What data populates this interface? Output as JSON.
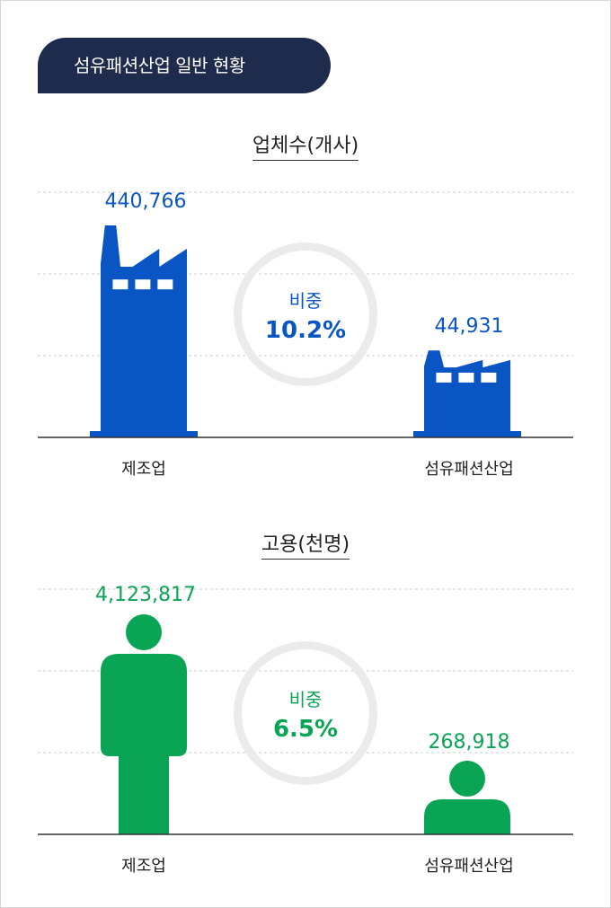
{
  "header": {
    "title": "섬유패션산업 일반 현황"
  },
  "chart_data": [
    {
      "type": "bar",
      "title": "업체수(개사)",
      "categories": [
        "제조업",
        "섬유패션산업"
      ],
      "values": [
        440766,
        44931
      ],
      "value_labels": [
        "440,766",
        "44,931"
      ],
      "ratio_label": "비중",
      "ratio_value": "10.2%",
      "ylim": [
        0,
        600000
      ],
      "grid": true,
      "color": "#0a55c4",
      "icon": "factory-icon"
    },
    {
      "type": "bar",
      "title": "고용(천명)",
      "categories": [
        "제조업",
        "섬유패션산업"
      ],
      "values": [
        4123817,
        268918
      ],
      "value_labels": [
        "4,123,817",
        "268,918"
      ],
      "ratio_label": "비중",
      "ratio_value": "6.5%",
      "ylim": [
        0,
        5500000
      ],
      "grid": true,
      "color": "#0aa554",
      "icon": "person-icon"
    }
  ]
}
